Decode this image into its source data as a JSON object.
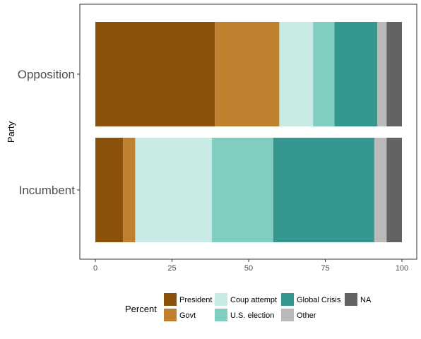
{
  "chart_data": {
    "type": "bar",
    "orientation": "horizontal",
    "stacked": true,
    "categories": [
      "Opposition",
      "Incumbent"
    ],
    "ylabel": "Party",
    "xlabel": "",
    "xlim": [
      0,
      100
    ],
    "xticks": [
      0,
      25,
      50,
      75,
      100
    ],
    "grid": false,
    "legend_position": "bottom",
    "legend_title": "Percent",
    "series": [
      {
        "name": "President",
        "color": "#8c510a",
        "values": [
          39,
          9
        ]
      },
      {
        "name": "Govt",
        "color": "#bf812d",
        "values": [
          21,
          4
        ]
      },
      {
        "name": "Coup attempt",
        "color": "#c7eae5",
        "values": [
          11,
          25
        ]
      },
      {
        "name": "U.S. election",
        "color": "#80cdc1",
        "values": [
          7,
          20
        ]
      },
      {
        "name": "Global Crisis",
        "color": "#35978f",
        "values": [
          14,
          33
        ]
      },
      {
        "name": "Other",
        "color": "#bababa",
        "values": [
          3,
          4
        ]
      },
      {
        "name": "NA",
        "color": "#636363",
        "values": [
          5,
          5
        ]
      }
    ]
  }
}
